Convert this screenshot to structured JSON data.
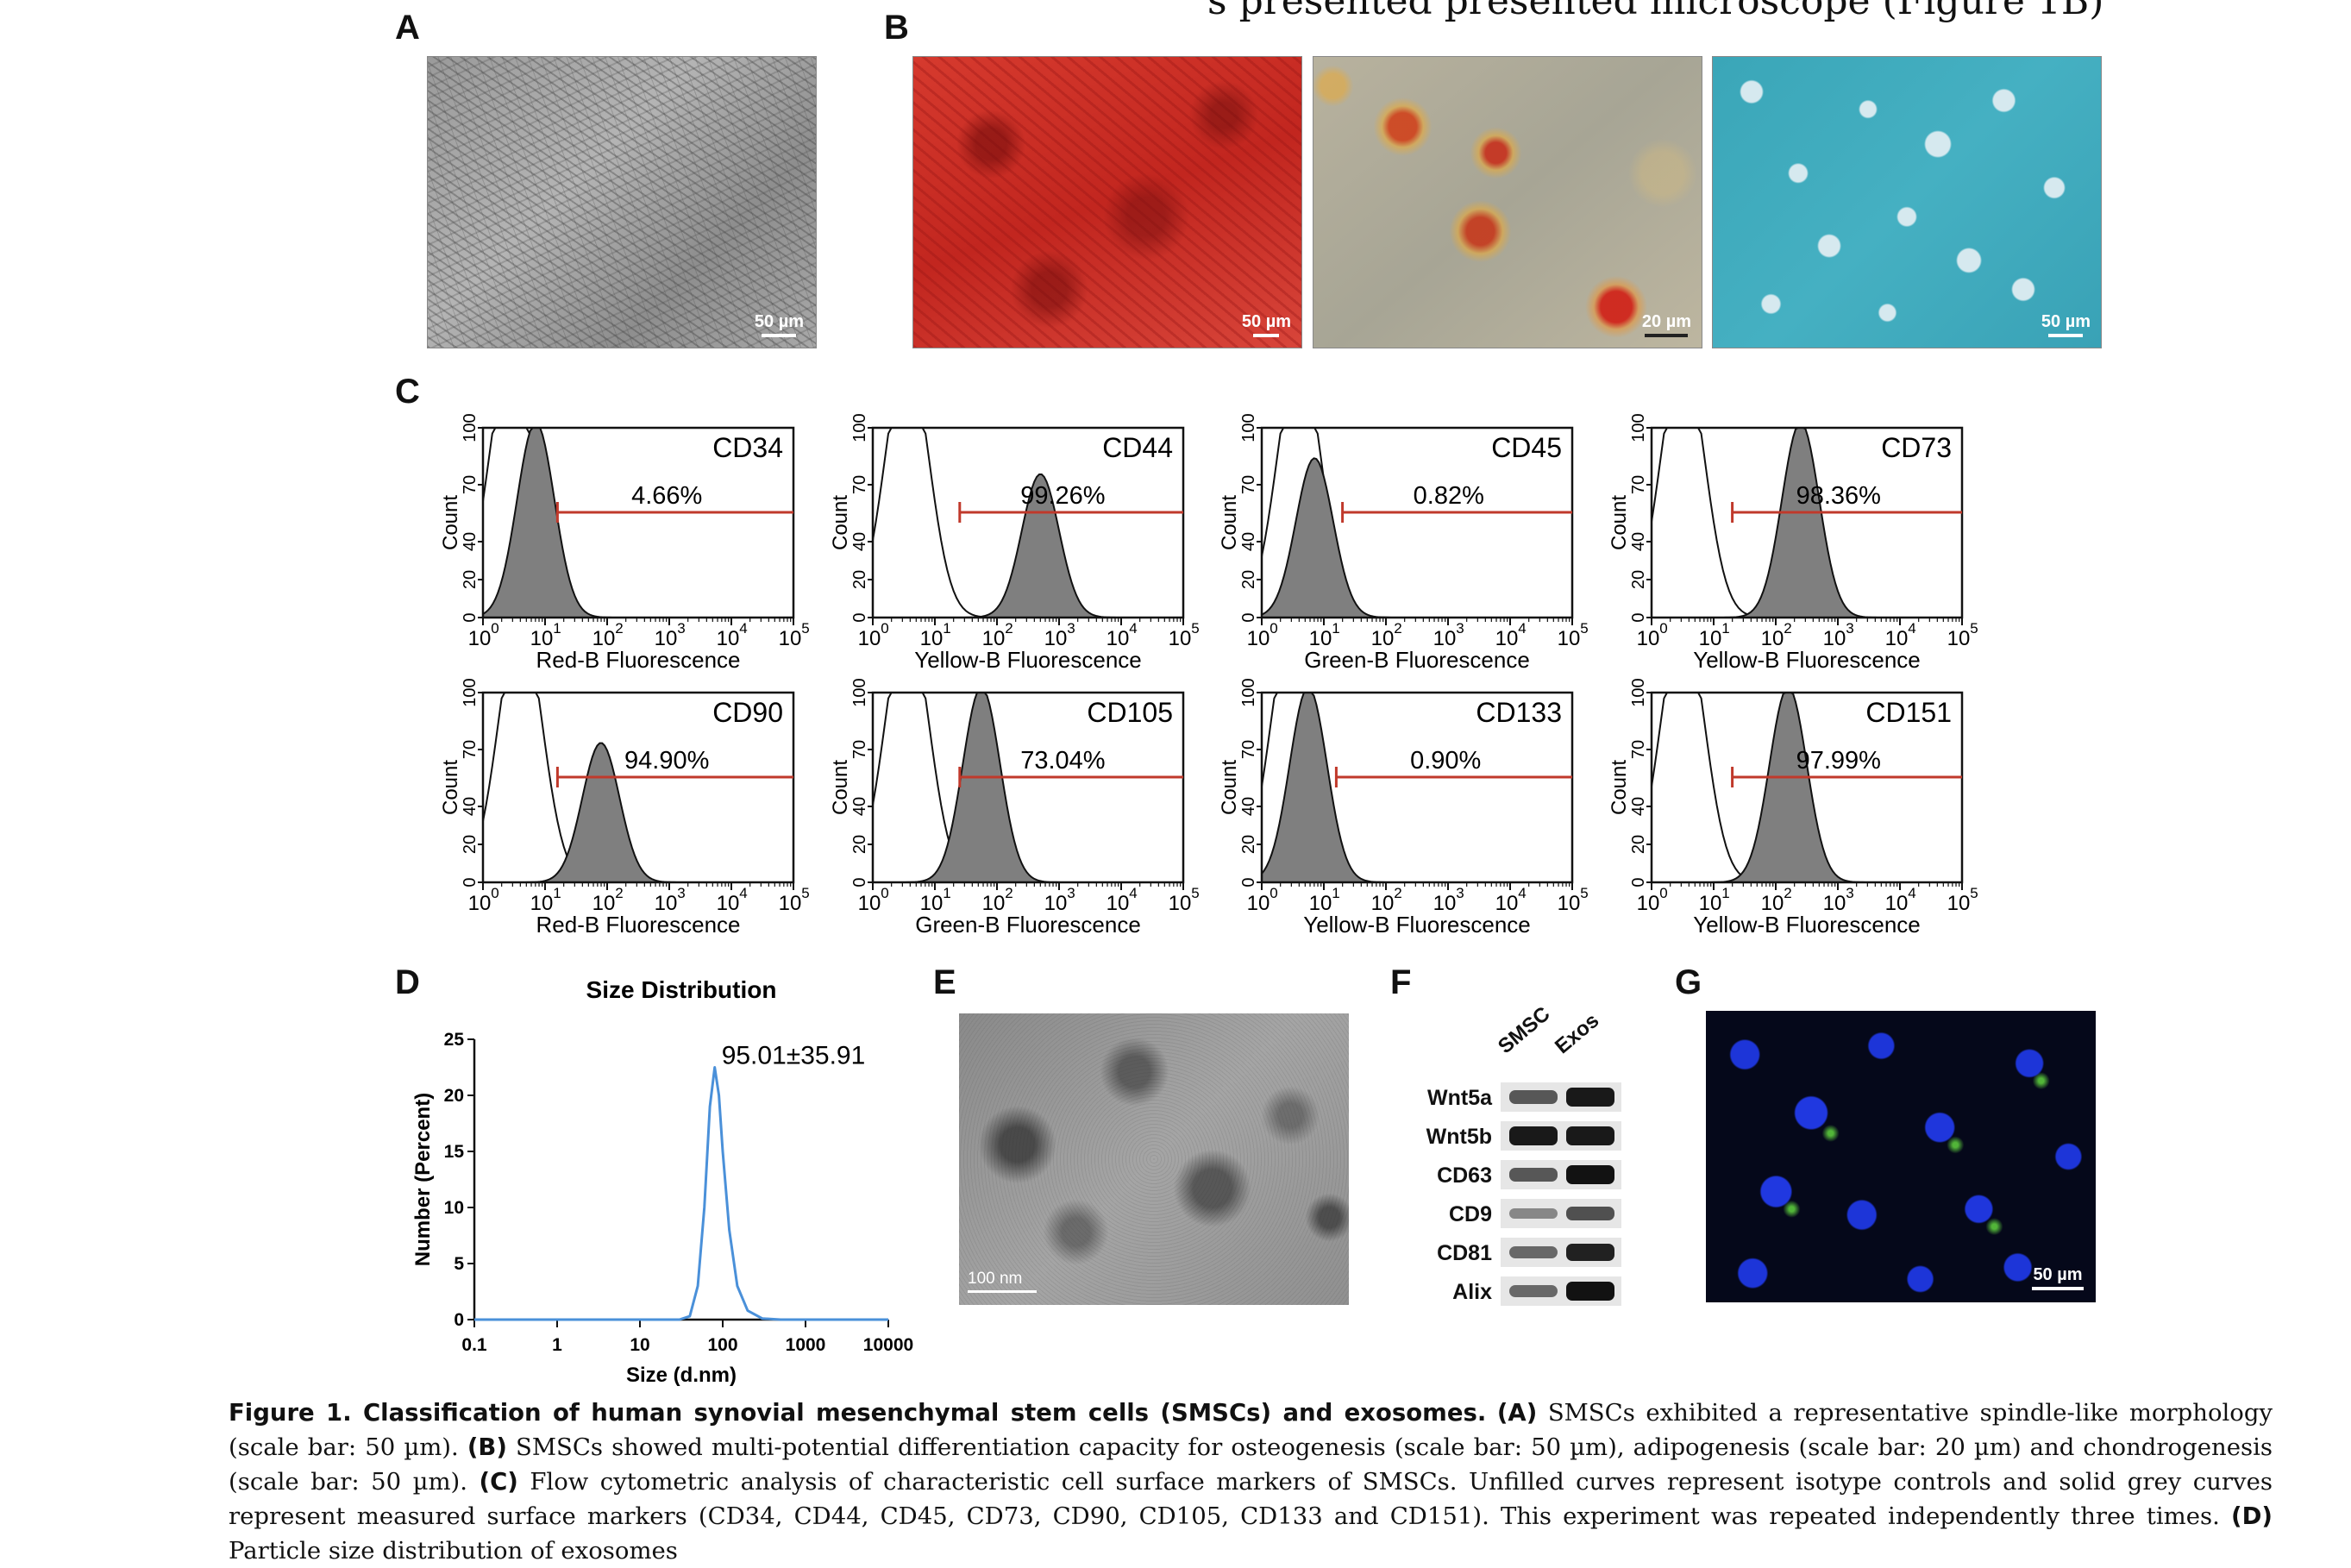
{
  "top_clip_text": "s presented presented microscope (Figure 1B)",
  "panels": {
    "A": "A",
    "B": "B",
    "C": "C",
    "D": "D",
    "E": "E",
    "F": "F",
    "G": "G"
  },
  "scale_bars": {
    "a": "50 µm",
    "b1": "50 µm",
    "b2": "20 µm",
    "b3": "50 µm",
    "e": "100 nm",
    "g": "50 µm"
  },
  "flow": [
    {
      "marker": "CD34",
      "percent": "4.66%",
      "xlabel": "Red-B Fluorescence",
      "peak_log": 0.85,
      "peak_height": 0.98,
      "gate_start_log": 1.2,
      "iso_peak_log": 0.45
    },
    {
      "marker": "CD44",
      "percent": "99.26%",
      "xlabel": "Yellow-B Fluorescence",
      "peak_log": 2.7,
      "peak_height": 0.72,
      "gate_start_log": 1.4,
      "iso_peak_log": 0.55
    },
    {
      "marker": "CD45",
      "percent": "0.82%",
      "xlabel": "Green-B Fluorescence",
      "peak_log": 0.85,
      "peak_height": 0.8,
      "gate_start_log": 1.3,
      "iso_peak_log": 0.6
    },
    {
      "marker": "CD73",
      "percent": "98.36%",
      "xlabel": "Yellow-B Fluorescence",
      "peak_log": 2.4,
      "peak_height": 0.98,
      "gate_start_log": 1.3,
      "iso_peak_log": 0.5
    },
    {
      "marker": "CD90",
      "percent": "94.90%",
      "xlabel": "Red-B Fluorescence",
      "peak_log": 1.9,
      "peak_height": 0.7,
      "gate_start_log": 1.2,
      "iso_peak_log": 0.6
    },
    {
      "marker": "CD105",
      "percent": "73.04%",
      "xlabel": "Green-B Fluorescence",
      "peak_log": 1.75,
      "peak_height": 0.98,
      "gate_start_log": 1.4,
      "iso_peak_log": 0.55
    },
    {
      "marker": "CD133",
      "percent": "0.90%",
      "xlabel": "Yellow-B Fluorescence",
      "peak_log": 0.75,
      "peak_height": 0.98,
      "gate_start_log": 1.2,
      "iso_peak_log": 0.5
    },
    {
      "marker": "CD151",
      "percent": "97.99%",
      "xlabel": "Yellow-B Fluorescence",
      "peak_log": 2.2,
      "peak_height": 0.98,
      "gate_start_log": 1.3,
      "iso_peak_log": 0.5
    }
  ],
  "flow_axis": {
    "ylabel": "Count",
    "yticks": [
      "0",
      "20",
      "40",
      "70",
      "100"
    ],
    "xticks": [
      "0",
      "1",
      "2",
      "3",
      "4",
      "5"
    ],
    "xtick_base": "10"
  },
  "chart_data": {
    "type": "line",
    "title": "Size Distribution",
    "xlabel": "Size (d.nm)",
    "ylabel": "Number (Percent)",
    "x_scale": "log",
    "xlim": [
      0.1,
      10000
    ],
    "ylim": [
      0,
      25
    ],
    "xticks": [
      "0.1",
      "1",
      "10",
      "100",
      "1000",
      "10000"
    ],
    "yticks": [
      "0",
      "5",
      "10",
      "15",
      "20",
      "25"
    ],
    "annotation": "95.01±35.91",
    "series": [
      {
        "color": "#4a90d9",
        "x": [
          0.1,
          1,
          10,
          30,
          40,
          50,
          60,
          70,
          80,
          90,
          100,
          120,
          150,
          200,
          300,
          500,
          1000,
          10000
        ],
        "y": [
          0,
          0,
          0,
          0,
          0.3,
          3,
          10,
          19,
          22.5,
          20,
          15,
          8,
          3,
          0.8,
          0.1,
          0,
          0,
          0
        ]
      }
    ]
  },
  "western_blot": {
    "columns": [
      "SMSC",
      "Exos"
    ],
    "rows": [
      {
        "label": "Wnt5a",
        "smsc": 0.55,
        "exos": 0.95
      },
      {
        "label": "Wnt5b",
        "smsc": 0.95,
        "exos": 0.95
      },
      {
        "label": "CD63",
        "smsc": 0.55,
        "exos": 1.0
      },
      {
        "label": "CD9",
        "smsc": 0.25,
        "exos": 0.6
      },
      {
        "label": "CD81",
        "smsc": 0.45,
        "exos": 0.9
      },
      {
        "label": "Alix",
        "smsc": 0.45,
        "exos": 1.0
      }
    ]
  },
  "caption": {
    "title": "Figure 1. Classification of human synovial mesenchymal stem cells (SMSCs) and exosomes.",
    "a_label": "(A)",
    "a_text": " SMSCs exhibited a representative spindle-like morphology (scale bar: 50 µm).",
    "b_label": "(B)",
    "b_text": " SMSCs showed multi-potential differentiation capacity for osteogenesis (scale bar: 50 µm), adipogenesis (scale bar: 20 µm) and chondrogenesis (scale bar: 50 µm).",
    "c_label": "(C)",
    "c_text": " Flow cytometric analysis of characteristic cell surface markers of SMSCs. Unfilled curves represent isotype controls and solid grey curves represent measured surface markers (CD34, CD44, CD45, CD73, CD90, CD105, CD133 and CD151). This experiment was repeated independently three times.",
    "d_label": "(D)",
    "d_text": " Particle size distribution of exosomes"
  }
}
